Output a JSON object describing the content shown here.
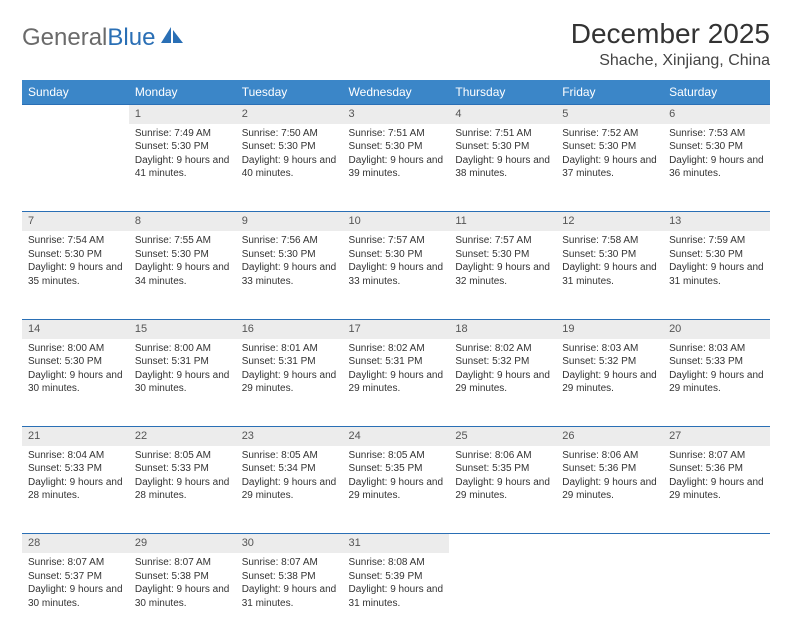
{
  "logo": {
    "text1": "General",
    "text2": "Blue"
  },
  "title": "December 2025",
  "location": "Shache, Xinjiang, China",
  "colors": {
    "header_bg": "#3b86c8",
    "border": "#2a6fb5",
    "daynum_bg": "#ececec",
    "text": "#333333"
  },
  "days": [
    "Sunday",
    "Monday",
    "Tuesday",
    "Wednesday",
    "Thursday",
    "Friday",
    "Saturday"
  ],
  "weeks": [
    {
      "nums": [
        "",
        "1",
        "2",
        "3",
        "4",
        "5",
        "6"
      ],
      "cells": [
        null,
        {
          "sunrise": "7:49 AM",
          "sunset": "5:30 PM",
          "daylight": "9 hours and 41 minutes."
        },
        {
          "sunrise": "7:50 AM",
          "sunset": "5:30 PM",
          "daylight": "9 hours and 40 minutes."
        },
        {
          "sunrise": "7:51 AM",
          "sunset": "5:30 PM",
          "daylight": "9 hours and 39 minutes."
        },
        {
          "sunrise": "7:51 AM",
          "sunset": "5:30 PM",
          "daylight": "9 hours and 38 minutes."
        },
        {
          "sunrise": "7:52 AM",
          "sunset": "5:30 PM",
          "daylight": "9 hours and 37 minutes."
        },
        {
          "sunrise": "7:53 AM",
          "sunset": "5:30 PM",
          "daylight": "9 hours and 36 minutes."
        }
      ]
    },
    {
      "nums": [
        "7",
        "8",
        "9",
        "10",
        "11",
        "12",
        "13"
      ],
      "cells": [
        {
          "sunrise": "7:54 AM",
          "sunset": "5:30 PM",
          "daylight": "9 hours and 35 minutes."
        },
        {
          "sunrise": "7:55 AM",
          "sunset": "5:30 PM",
          "daylight": "9 hours and 34 minutes."
        },
        {
          "sunrise": "7:56 AM",
          "sunset": "5:30 PM",
          "daylight": "9 hours and 33 minutes."
        },
        {
          "sunrise": "7:57 AM",
          "sunset": "5:30 PM",
          "daylight": "9 hours and 33 minutes."
        },
        {
          "sunrise": "7:57 AM",
          "sunset": "5:30 PM",
          "daylight": "9 hours and 32 minutes."
        },
        {
          "sunrise": "7:58 AM",
          "sunset": "5:30 PM",
          "daylight": "9 hours and 31 minutes."
        },
        {
          "sunrise": "7:59 AM",
          "sunset": "5:30 PM",
          "daylight": "9 hours and 31 minutes."
        }
      ]
    },
    {
      "nums": [
        "14",
        "15",
        "16",
        "17",
        "18",
        "19",
        "20"
      ],
      "cells": [
        {
          "sunrise": "8:00 AM",
          "sunset": "5:30 PM",
          "daylight": "9 hours and 30 minutes."
        },
        {
          "sunrise": "8:00 AM",
          "sunset": "5:31 PM",
          "daylight": "9 hours and 30 minutes."
        },
        {
          "sunrise": "8:01 AM",
          "sunset": "5:31 PM",
          "daylight": "9 hours and 29 minutes."
        },
        {
          "sunrise": "8:02 AM",
          "sunset": "5:31 PM",
          "daylight": "9 hours and 29 minutes."
        },
        {
          "sunrise": "8:02 AM",
          "sunset": "5:32 PM",
          "daylight": "9 hours and 29 minutes."
        },
        {
          "sunrise": "8:03 AM",
          "sunset": "5:32 PM",
          "daylight": "9 hours and 29 minutes."
        },
        {
          "sunrise": "8:03 AM",
          "sunset": "5:33 PM",
          "daylight": "9 hours and 29 minutes."
        }
      ]
    },
    {
      "nums": [
        "21",
        "22",
        "23",
        "24",
        "25",
        "26",
        "27"
      ],
      "cells": [
        {
          "sunrise": "8:04 AM",
          "sunset": "5:33 PM",
          "daylight": "9 hours and 28 minutes."
        },
        {
          "sunrise": "8:05 AM",
          "sunset": "5:33 PM",
          "daylight": "9 hours and 28 minutes."
        },
        {
          "sunrise": "8:05 AM",
          "sunset": "5:34 PM",
          "daylight": "9 hours and 29 minutes."
        },
        {
          "sunrise": "8:05 AM",
          "sunset": "5:35 PM",
          "daylight": "9 hours and 29 minutes."
        },
        {
          "sunrise": "8:06 AM",
          "sunset": "5:35 PM",
          "daylight": "9 hours and 29 minutes."
        },
        {
          "sunrise": "8:06 AM",
          "sunset": "5:36 PM",
          "daylight": "9 hours and 29 minutes."
        },
        {
          "sunrise": "8:07 AM",
          "sunset": "5:36 PM",
          "daylight": "9 hours and 29 minutes."
        }
      ]
    },
    {
      "nums": [
        "28",
        "29",
        "30",
        "31",
        "",
        "",
        ""
      ],
      "cells": [
        {
          "sunrise": "8:07 AM",
          "sunset": "5:37 PM",
          "daylight": "9 hours and 30 minutes."
        },
        {
          "sunrise": "8:07 AM",
          "sunset": "5:38 PM",
          "daylight": "9 hours and 30 minutes."
        },
        {
          "sunrise": "8:07 AM",
          "sunset": "5:38 PM",
          "daylight": "9 hours and 31 minutes."
        },
        {
          "sunrise": "8:08 AM",
          "sunset": "5:39 PM",
          "daylight": "9 hours and 31 minutes."
        },
        null,
        null,
        null
      ]
    }
  ],
  "labels": {
    "sunrise": "Sunrise:",
    "sunset": "Sunset:",
    "daylight": "Daylight:"
  }
}
